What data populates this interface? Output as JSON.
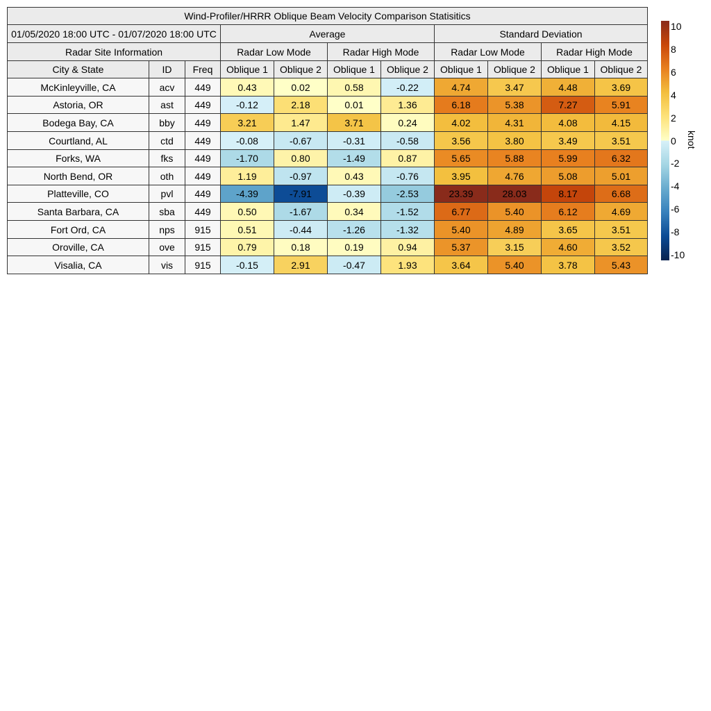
{
  "chart_data": {
    "type": "heatmap",
    "title": "Wind-Profiler/HRRR Oblique Beam Velocity Comparison Statisitics",
    "period": "01/05/2020 18:00 UTC - 01/07/2020 18:00 UTC",
    "groups": {
      "average": "Average",
      "std": "Standard Deviation",
      "site_info": "Radar Site Information"
    },
    "modes": [
      "Radar Low Mode",
      "Radar High Mode",
      "Radar Low Mode",
      "Radar High Mode"
    ],
    "columns": [
      "City & State",
      "ID",
      "Freq",
      "Oblique 1",
      "Oblique 2",
      "Oblique 1",
      "Oblique 2",
      "Oblique 1",
      "Oblique 2",
      "Oblique 1",
      "Oblique 2"
    ],
    "rows": [
      {
        "city": "McKinleyville, CA",
        "id": "acv",
        "freq": "449",
        "values": [
          "0.43",
          "0.02",
          "0.58",
          "-0.22",
          "4.74",
          "3.47",
          "4.48",
          "3.69"
        ]
      },
      {
        "city": "Astoria, OR",
        "id": "ast",
        "freq": "449",
        "values": [
          "-0.12",
          "2.18",
          "0.01",
          "1.36",
          "6.18",
          "5.38",
          "7.27",
          "5.91"
        ]
      },
      {
        "city": "Bodega Bay, CA",
        "id": "bby",
        "freq": "449",
        "values": [
          "3.21",
          "1.47",
          "3.71",
          "0.24",
          "4.02",
          "4.31",
          "4.08",
          "4.15"
        ]
      },
      {
        "city": "Courtland, AL",
        "id": "ctd",
        "freq": "449",
        "values": [
          "-0.08",
          "-0.67",
          "-0.31",
          "-0.58",
          "3.56",
          "3.80",
          "3.49",
          "3.51"
        ]
      },
      {
        "city": "Forks, WA",
        "id": "fks",
        "freq": "449",
        "values": [
          "-1.70",
          "0.80",
          "-1.49",
          "0.87",
          "5.65",
          "5.88",
          "5.99",
          "6.32"
        ]
      },
      {
        "city": "North Bend, OR",
        "id": "oth",
        "freq": "449",
        "values": [
          "1.19",
          "-0.97",
          "0.43",
          "-0.76",
          "3.95",
          "4.76",
          "5.08",
          "5.01"
        ]
      },
      {
        "city": "Platteville, CO",
        "id": "pvl",
        "freq": "449",
        "values": [
          "-4.39",
          "-7.91",
          "-0.39",
          "-2.53",
          "23.39",
          "28.03",
          "8.17",
          "6.68"
        ]
      },
      {
        "city": "Santa Barbara, CA",
        "id": "sba",
        "freq": "449",
        "values": [
          "0.50",
          "-1.67",
          "0.34",
          "-1.52",
          "6.77",
          "5.40",
          "6.12",
          "4.69"
        ]
      },
      {
        "city": "Fort Ord, CA",
        "id": "nps",
        "freq": "915",
        "values": [
          "0.51",
          "-0.44",
          "-1.26",
          "-1.32",
          "5.40",
          "4.89",
          "3.65",
          "3.51"
        ]
      },
      {
        "city": "Oroville, CA",
        "id": "ove",
        "freq": "915",
        "values": [
          "0.79",
          "0.18",
          "0.19",
          "0.94",
          "5.37",
          "3.15",
          "4.60",
          "3.52"
        ]
      },
      {
        "city": "Visalia, CA",
        "id": "vis",
        "freq": "915",
        "values": [
          "-0.15",
          "2.91",
          "-0.47",
          "1.93",
          "3.64",
          "5.40",
          "3.78",
          "5.43"
        ]
      }
    ],
    "colorbar": {
      "label": "knot",
      "range": [
        -10,
        10
      ],
      "ticks": [
        "10",
        "8",
        "6",
        "4",
        "2",
        "0",
        "-2",
        "-4",
        "-6",
        "-8",
        "-10"
      ],
      "colors": {
        "-10": "#08234f",
        "-8": "#0b4a94",
        "-6": "#3680bc",
        "-4": "#68abce",
        "-2": "#a5d6e4",
        "0": "#d8f1f9",
        "0+": "#ffffc8",
        "2": "#fde27a",
        "4": "#f3bf3e",
        "6": "#e8801f",
        "8": "#c9470a",
        "10": "#892b1b"
      }
    }
  }
}
